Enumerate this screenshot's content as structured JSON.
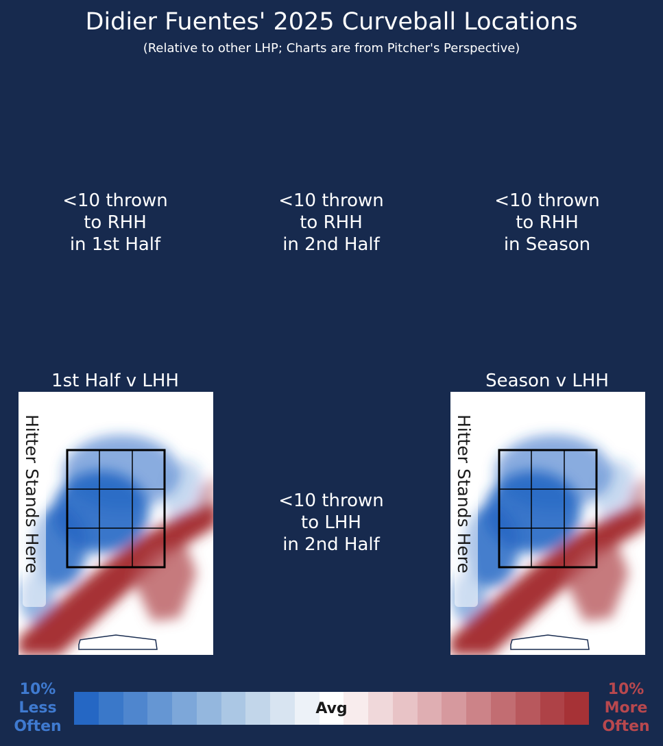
{
  "header": {
    "title": "Didier Fuentes' 2025 Curveball Locations",
    "subtitle": "(Relative to other LHP; Charts are from Pitcher's Perspective)"
  },
  "notes": {
    "rhh_1st": "<10 thrown\nto RHH\nin 1st Half",
    "rhh_2nd": "<10 thrown\nto RHH\nin 2nd Half",
    "rhh_season": "<10 thrown\nto RHH\nin Season",
    "lhh_2nd": "<10 thrown\nto LHH\nin 2nd Half"
  },
  "panels": {
    "lhh_1st_title": "1st Half v LHH",
    "lhh_season_title": "Season v LHH",
    "hitter_label": "Hitter Stands Here"
  },
  "chart_data": [
    {
      "type": "heatmap",
      "title": "1st Half v LHH",
      "description_values": "relative location frequency vs other LHP, -1 = 10% less often, +1 = 10% more often",
      "zone_grid": [
        [
          -0.3,
          -0.6,
          -0.5
        ],
        [
          -0.9,
          -1.0,
          -0.6
        ],
        [
          -1.0,
          -0.4,
          0.2
        ]
      ],
      "hot_band": "lower-left to right, below zone (more often)",
      "cold_region": "inside zone and left edge (less often)"
    },
    {
      "type": "heatmap",
      "title": "Season v LHH",
      "zone_grid": [
        [
          -0.3,
          -0.6,
          -0.5
        ],
        [
          -0.9,
          -1.0,
          -0.6
        ],
        [
          -1.0,
          -0.4,
          0.2
        ]
      ],
      "hot_band": "lower-left to right, below zone (more often)",
      "cold_region": "inside zone and left edge (less often)"
    }
  ],
  "legend": {
    "less_label": "10%\nLess\nOften",
    "more_label": "10%\nMore\nOften",
    "avg_label": "Avg",
    "less_color": "#3f7ad0",
    "more_color": "#b8484e",
    "colors": [
      "#2567c4",
      "#3a78c9",
      "#4f86ce",
      "#6596d3",
      "#7da7d9",
      "#94b7de",
      "#abc7e4",
      "#c2d6ea",
      "#d8e4f1",
      "#edf2f8",
      "#ffffff",
      "#f8eced",
      "#f0d8da",
      "#e8c3c6",
      "#dfaeb2",
      "#d6999e",
      "#cc8388",
      "#c26d72",
      "#b8585d",
      "#ae4247",
      "#a63236"
    ]
  }
}
